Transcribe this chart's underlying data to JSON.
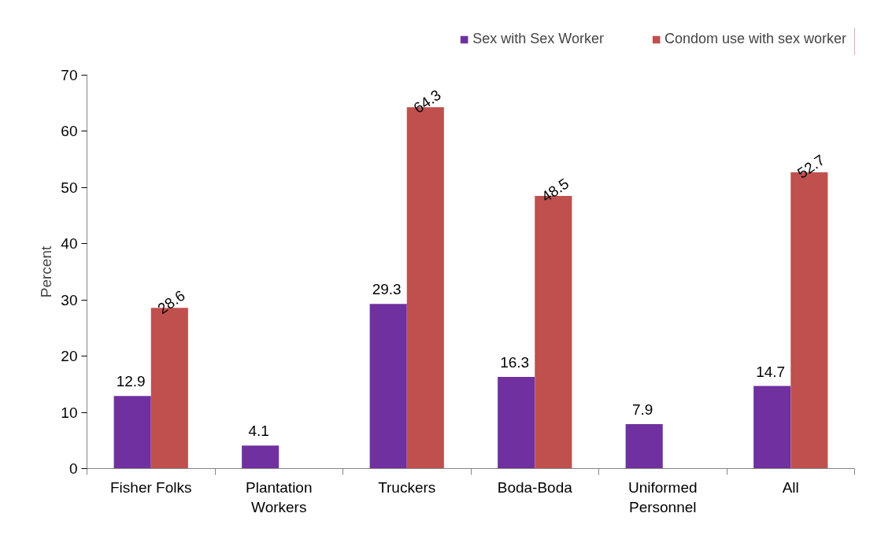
{
  "chart_data": {
    "type": "bar",
    "ylabel": "Percent",
    "categories": [
      "Fisher Folks",
      "Plantation Workers",
      "Truckers",
      "Boda-Boda",
      "Uniformed Personnel",
      "All"
    ],
    "series": [
      {
        "name": "Sex with Sex Worker",
        "color": "#7030a0",
        "values": [
          12.9,
          4.1,
          29.3,
          16.3,
          7.9,
          14.7
        ]
      },
      {
        "name": "Condom use with sex worker",
        "color": "#c0504d",
        "values": [
          28.6,
          null,
          64.3,
          48.5,
          null,
          52.7
        ]
      }
    ],
    "ylim": [
      0,
      70
    ],
    "yticks": [
      0,
      10,
      20,
      30,
      40,
      50,
      60,
      70
    ],
    "grid": false,
    "legend": "top right",
    "data_labels": true
  }
}
